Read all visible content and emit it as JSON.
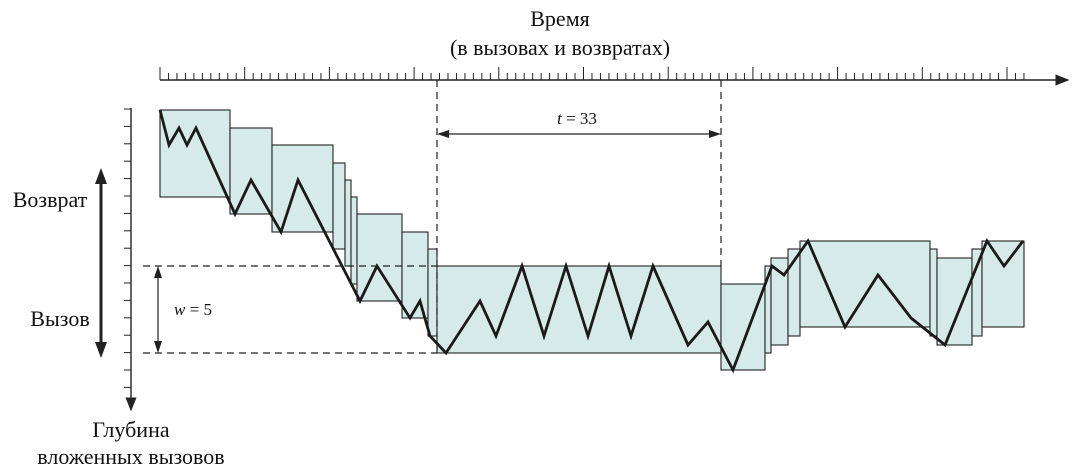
{
  "time_axis": {
    "title": "Время",
    "subtitle": "(в вызовах и возвратах)"
  },
  "depth_axis": {
    "title_line1": "Глубина",
    "title_line2": "вложенных вызовов"
  },
  "direction_labels": {
    "return": "Возврат",
    "call": "Вызов"
  },
  "annotations": {
    "t_label_var": "t",
    "t_label_val": " = 33",
    "w_label_var": "w",
    "w_label_val": " = 5"
  },
  "colors": {
    "window_fill": "#d6eaea",
    "outline": "#222222",
    "trace": "#1a1a1a"
  }
}
